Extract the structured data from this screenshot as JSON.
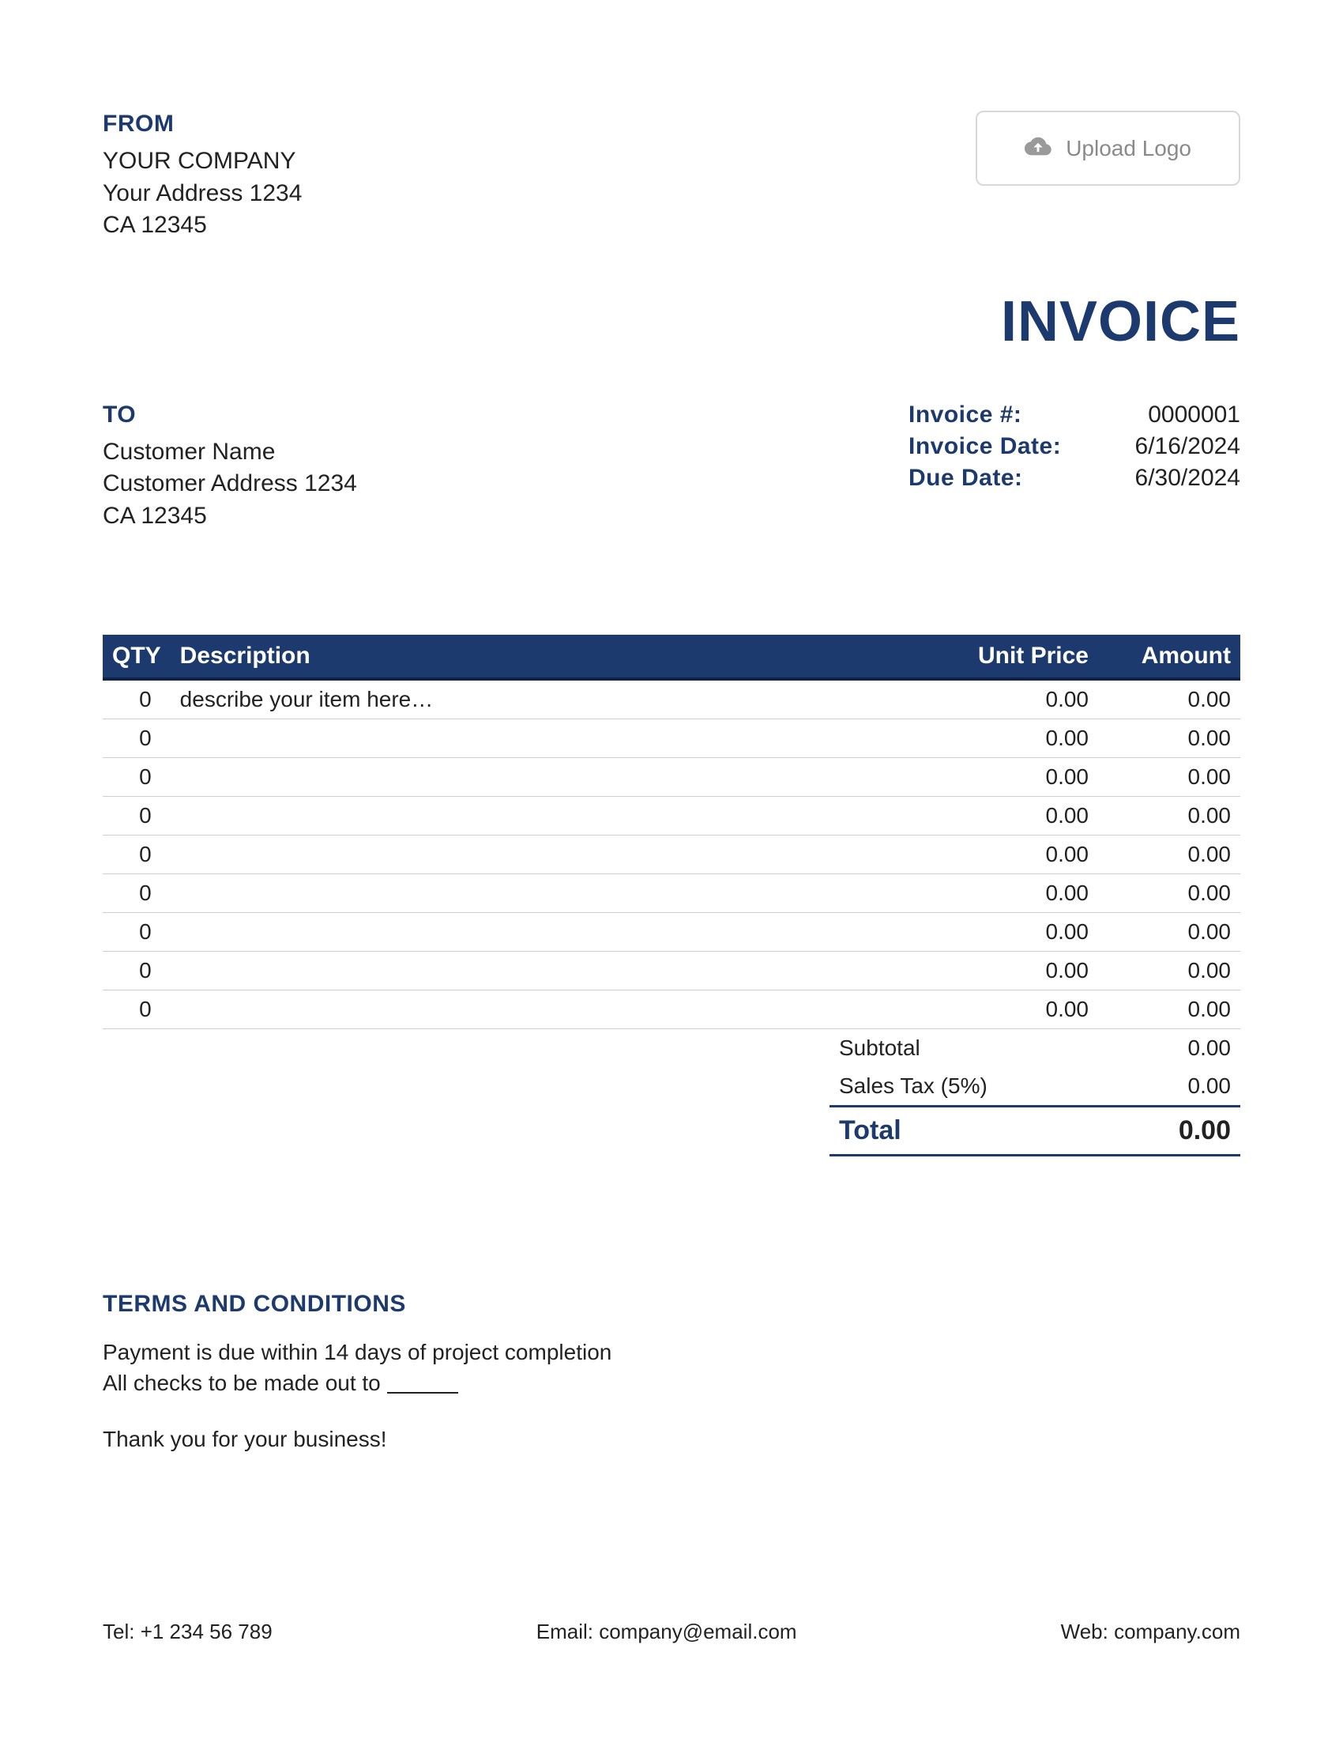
{
  "colors": {
    "navy": "#1d3a6e",
    "navy_dark": "#0f234a",
    "border_gray": "#d8d8d8",
    "row_border": "#cfcfcf",
    "placeholder_gray": "#8a8a8a",
    "icon_gray": "#9a9a9a",
    "text": "#222222",
    "background": "#ffffff"
  },
  "from": {
    "label": "FROM",
    "company": "YOUR COMPANY",
    "address": "Your Address 1234",
    "city_zip": "CA 12345"
  },
  "upload": {
    "label": "Upload Logo"
  },
  "title": "INVOICE",
  "to": {
    "label": "TO",
    "name": "Customer Name",
    "address": "Customer Address 1234",
    "city_zip": "CA 12345"
  },
  "meta": {
    "number_label": "Invoice #:",
    "number_value": "0000001",
    "date_label": "Invoice Date:",
    "date_value": "6/16/2024",
    "due_label": "Due Date:",
    "due_value": "6/30/2024"
  },
  "table": {
    "headers": {
      "qty": "QTY",
      "desc": "Description",
      "unit": "Unit Price",
      "amt": "Amount"
    },
    "rows": [
      {
        "qty": "0",
        "desc": "describe your item here…",
        "unit": "0.00",
        "amt": "0.00"
      },
      {
        "qty": "0",
        "desc": "",
        "unit": "0.00",
        "amt": "0.00"
      },
      {
        "qty": "0",
        "desc": "",
        "unit": "0.00",
        "amt": "0.00"
      },
      {
        "qty": "0",
        "desc": "",
        "unit": "0.00",
        "amt": "0.00"
      },
      {
        "qty": "0",
        "desc": "",
        "unit": "0.00",
        "amt": "0.00"
      },
      {
        "qty": "0",
        "desc": "",
        "unit": "0.00",
        "amt": "0.00"
      },
      {
        "qty": "0",
        "desc": "",
        "unit": "0.00",
        "amt": "0.00"
      },
      {
        "qty": "0",
        "desc": "",
        "unit": "0.00",
        "amt": "0.00"
      },
      {
        "qty": "0",
        "desc": "",
        "unit": "0.00",
        "amt": "0.00"
      }
    ]
  },
  "totals": {
    "subtotal_label": "Subtotal",
    "subtotal_value": "0.00",
    "tax_label": "Sales Tax (5%)",
    "tax_value": "0.00",
    "total_label": "Total",
    "total_value": "0.00"
  },
  "terms": {
    "heading": "TERMS AND CONDITIONS",
    "line1": "Payment is due within 14 days of project completion",
    "line2_prefix": "All checks to be made out to ",
    "thanks": "Thank you for your business!"
  },
  "footer": {
    "tel_label": "Tel: ",
    "tel_value": "+1 234 56 789",
    "email_label": "Email: ",
    "email_value": "company@email.com",
    "web_label": "Web: ",
    "web_value": "company.com"
  }
}
